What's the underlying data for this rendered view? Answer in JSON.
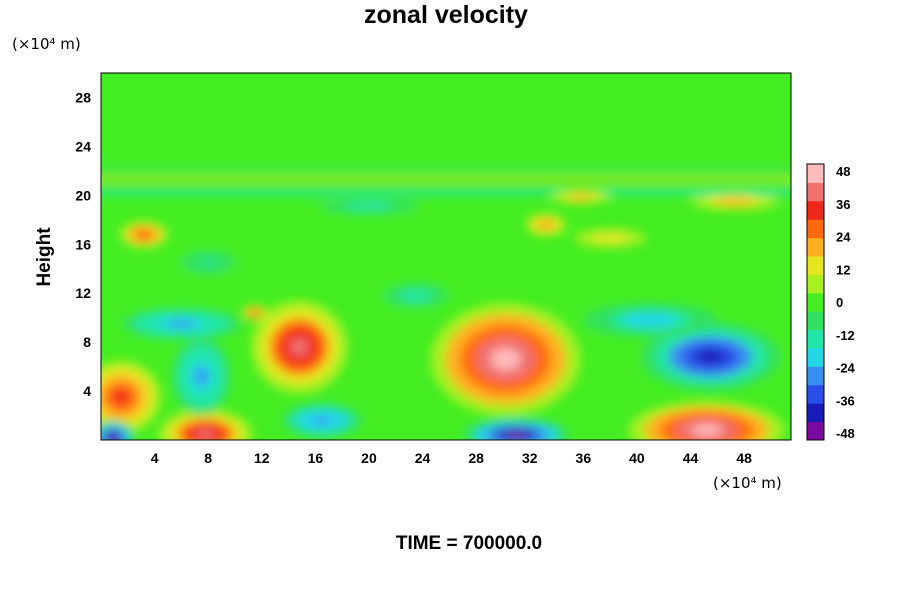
{
  "chart_data": {
    "type": "heatmap",
    "title": "zonal velocity",
    "ylabel": "Height",
    "xlabel": "",
    "x_unit": "(×10⁴ m)",
    "y_unit": "(×10⁴ m)",
    "xlim": [
      0,
      51.5
    ],
    "ylim": [
      0,
      30
    ],
    "x_ticks": [
      4,
      8,
      12,
      16,
      20,
      24,
      28,
      32,
      36,
      40,
      44,
      48
    ],
    "y_ticks": [
      4,
      8,
      12,
      16,
      20,
      24,
      28
    ],
    "colorbar": {
      "min": -48,
      "max": 48,
      "labels": [
        48,
        36,
        24,
        12,
        0,
        -12,
        -24,
        -36,
        -48
      ],
      "colors": [
        "#7a0a9e",
        "#1a1ab8",
        "#2a4ee8",
        "#3a8ef0",
        "#22d6e6",
        "#22e6a8",
        "#33e060",
        "#44ee22",
        "#a8f020",
        "#e6e620",
        "#ffb020",
        "#ff6a10",
        "#ee2818",
        "#f07070",
        "#ffbaba"
      ]
    },
    "background_value": 0,
    "features": [
      {
        "x": 1.5,
        "y": 3.5,
        "rx": 3,
        "ry": 3,
        "value": 34
      },
      {
        "x": 7.8,
        "y": 0.5,
        "rx": 3.5,
        "ry": 2,
        "value": 38
      },
      {
        "x": 14.8,
        "y": 7.6,
        "rx": 3.6,
        "ry": 3.8,
        "value": 38
      },
      {
        "x": 30.2,
        "y": 6.6,
        "rx": 5.6,
        "ry": 4.6,
        "value": 46
      },
      {
        "x": 45.2,
        "y": 0.8,
        "rx": 5.8,
        "ry": 2.4,
        "value": 44
      },
      {
        "x": 31,
        "y": 0.4,
        "rx": 4,
        "ry": 1.4,
        "value": -46
      },
      {
        "x": 0.9,
        "y": 0.2,
        "rx": 1.6,
        "ry": 1.4,
        "value": -46
      },
      {
        "x": 45.5,
        "y": 6.8,
        "rx": 5.2,
        "ry": 2.8,
        "value": -40
      },
      {
        "x": 7.5,
        "y": 5.2,
        "rx": 2.2,
        "ry": 3.2,
        "value": -26
      },
      {
        "x": 16.5,
        "y": 1.6,
        "rx": 3,
        "ry": 1.4,
        "value": -28
      },
      {
        "x": 6,
        "y": 9.5,
        "rx": 4.5,
        "ry": 1.3,
        "value": -26
      },
      {
        "x": 41,
        "y": 9.8,
        "rx": 5,
        "ry": 1.4,
        "value": -22
      },
      {
        "x": 3.2,
        "y": 16.8,
        "rx": 1.8,
        "ry": 1.1,
        "value": 28
      },
      {
        "x": 33.2,
        "y": 17.6,
        "rx": 1.5,
        "ry": 0.9,
        "value": 26
      },
      {
        "x": 47.3,
        "y": 19.5,
        "rx": 3.3,
        "ry": 0.7,
        "value": 20
      },
      {
        "x": 35.8,
        "y": 19.9,
        "rx": 2.3,
        "ry": 0.6,
        "value": 22
      },
      {
        "x": 11.5,
        "y": 10.4,
        "rx": 1,
        "ry": 0.6,
        "value": 32
      },
      {
        "x": 20,
        "y": 19.1,
        "rx": 4.5,
        "ry": 0.8,
        "value": -14
      },
      {
        "x": 38,
        "y": 16.5,
        "rx": 3.2,
        "ry": 0.9,
        "value": 14
      },
      {
        "x": 23.5,
        "y": 11.8,
        "rx": 3,
        "ry": 1.2,
        "value": -12
      },
      {
        "x": 8,
        "y": 14.5,
        "rx": 2.5,
        "ry": 1.2,
        "value": -10
      }
    ],
    "bands": [
      {
        "y": 20.3,
        "thickness": 0.45,
        "value": -14
      },
      {
        "y": 21.3,
        "thickness": 0.25,
        "value": 12
      },
      {
        "y": 22.1,
        "thickness": 0.35,
        "value": -6
      }
    ]
  },
  "footer": {
    "time_label": "TIME = 700000.0"
  }
}
